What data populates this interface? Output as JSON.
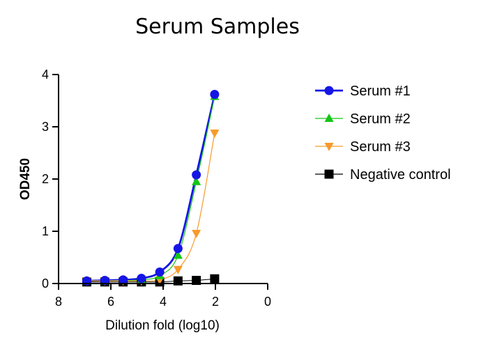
{
  "chart_data": {
    "type": "line",
    "title": "Serum Samples",
    "xlabel": "Dilution fold (log10)",
    "ylabel": "OD450",
    "xlim": [
      8,
      0
    ],
    "ylim": [
      0,
      4
    ],
    "xticks": [
      8,
      6,
      4,
      2,
      0
    ],
    "yticks": [
      0,
      1,
      2,
      3,
      4
    ],
    "grid": false,
    "legend_position": "right",
    "x": [
      6.92,
      6.23,
      5.53,
      4.83,
      4.13,
      3.43,
      2.73,
      2.03
    ],
    "series": [
      {
        "name": "Serum #1",
        "marker": "circle",
        "color": "#1515e6",
        "values": [
          0.05,
          0.06,
          0.07,
          0.1,
          0.22,
          0.67,
          2.08,
          3.62
        ]
      },
      {
        "name": "Serum #2",
        "marker": "triangle-up",
        "color": "#14c614",
        "values": [
          0.05,
          0.05,
          0.06,
          0.07,
          0.15,
          0.54,
          1.95,
          3.58
        ]
      },
      {
        "name": "Serum #3",
        "marker": "triangle-down",
        "color": "#f79a2a",
        "values": [
          0.05,
          0.05,
          0.05,
          0.05,
          0.07,
          0.27,
          0.96,
          2.88
        ]
      },
      {
        "name": "Negative control",
        "marker": "square",
        "color": "#000000",
        "values": [
          0.03,
          0.03,
          0.03,
          0.03,
          0.03,
          0.05,
          0.06,
          0.09
        ]
      }
    ]
  }
}
